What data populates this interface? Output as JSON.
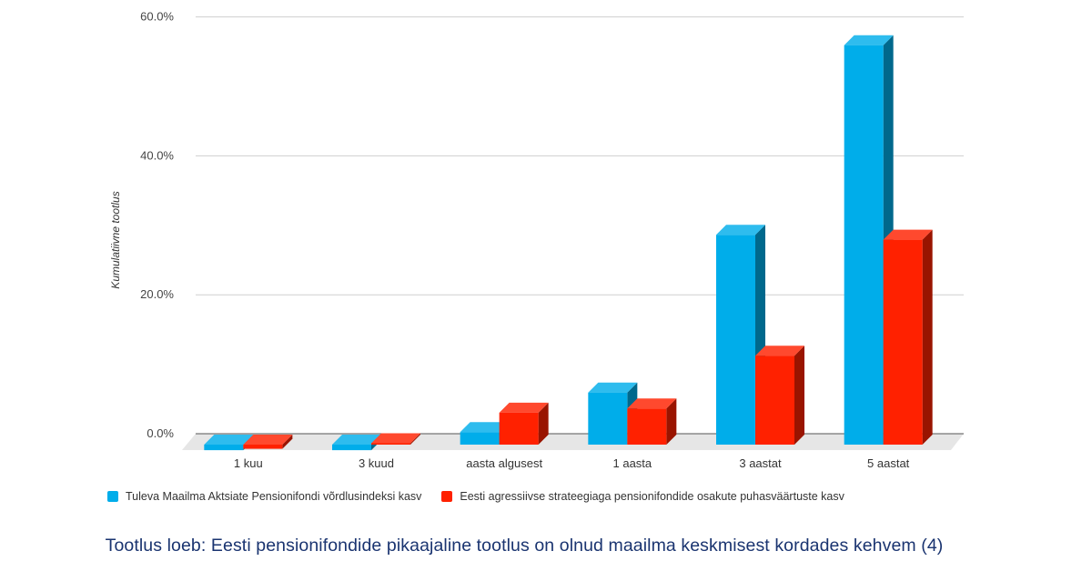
{
  "chart_data": {
    "type": "bar",
    "categories": [
      "1 kuu",
      "3 kuud",
      "aasta algusest",
      "1 aasta",
      "3 aastat",
      "5 aastat"
    ],
    "series": [
      {
        "name": "Tuleva Maailma Aktsiate Pensionifondi võrdlusindeksi kasv",
        "values": [
          -0.8,
          -0.8,
          1.8,
          7.5,
          30.2,
          57.5
        ],
        "color": "#00adea"
      },
      {
        "name": "Eesti agressiivse strateegiaga pensionifondide osakute puhasväärtuste kasv",
        "values": [
          -0.6,
          0.2,
          4.6,
          5.2,
          12.8,
          29.5
        ],
        "color": "#ff2100"
      }
    ],
    "yticks": [
      "0.0%",
      "20.0%",
      "40.0%",
      "60.0%"
    ],
    "ylim": [
      0,
      60
    ],
    "ylabel": "Kumulatiivne tootlus",
    "xlabel": "",
    "grid": true,
    "legend": "bottom"
  },
  "caption": "Tootlus loeb: Eesti pensionifondide pikaajaline tootlus on olnud maailma keskmisest kordades kehvem (4)"
}
